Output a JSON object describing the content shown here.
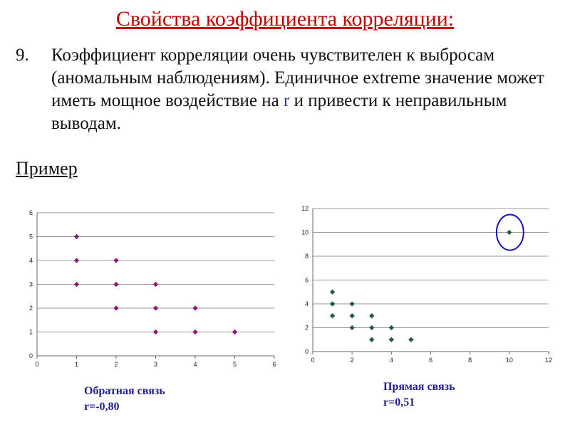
{
  "slide": {
    "title": "Свойства коэффициента корреляции:",
    "item_number": "9.",
    "item_text_before": "Коэффициент корреляции очень чувствителен к выбросам (аномальным наблюдениям). Единичное extreme значение может иметь мощное воздействие на ",
    "item_text_var": "r",
    "item_text_after": " и привести к неправильным выводам.",
    "example_label": "Пример"
  },
  "colors": {
    "title": "#c00000",
    "left_markers": "#8b1a7a",
    "right_markers": "#1e5c3a",
    "outlier_circle": "#1010c0",
    "caption": "#1f1f8f",
    "gridline": "#9a9a9a"
  },
  "chart_data": [
    {
      "type": "scatter",
      "title": "",
      "xlabel": "",
      "ylabel": "",
      "xlim": [
        0,
        6
      ],
      "ylim": [
        0,
        6
      ],
      "xticks": [
        "0",
        "1",
        "2",
        "3",
        "4",
        "5",
        "6"
      ],
      "yticks": [
        "0",
        "1",
        "2",
        "3",
        "4",
        "5",
        "6"
      ],
      "grid": "horizontal",
      "marker": "diamond",
      "x": [
        1,
        1,
        1,
        2,
        2,
        2,
        3,
        3,
        3,
        4,
        4,
        5
      ],
      "y": [
        5,
        4,
        3,
        4,
        3,
        2,
        3,
        2,
        1,
        2,
        1,
        1
      ],
      "caption": [
        "Обратная связь",
        "r=-0,80"
      ]
    },
    {
      "type": "scatter",
      "title": "",
      "xlabel": "",
      "ylabel": "",
      "xlim": [
        0,
        12
      ],
      "ylim": [
        0,
        12
      ],
      "xticks": [
        "0",
        "2",
        "4",
        "6",
        "8",
        "10",
        "12"
      ],
      "yticks": [
        "0",
        "2",
        "4",
        "6",
        "8",
        "10",
        "12"
      ],
      "grid": "horizontal",
      "marker": "diamond",
      "x": [
        1,
        1,
        1,
        2,
        2,
        2,
        3,
        3,
        3,
        4,
        4,
        5,
        10
      ],
      "y": [
        5,
        4,
        3,
        4,
        3,
        2,
        3,
        2,
        1,
        2,
        1,
        1,
        10
      ],
      "highlight": {
        "x": 10,
        "y": 10,
        "shape": "circle"
      },
      "caption": [
        "Прямая связь",
        "r=0,51"
      ]
    }
  ]
}
